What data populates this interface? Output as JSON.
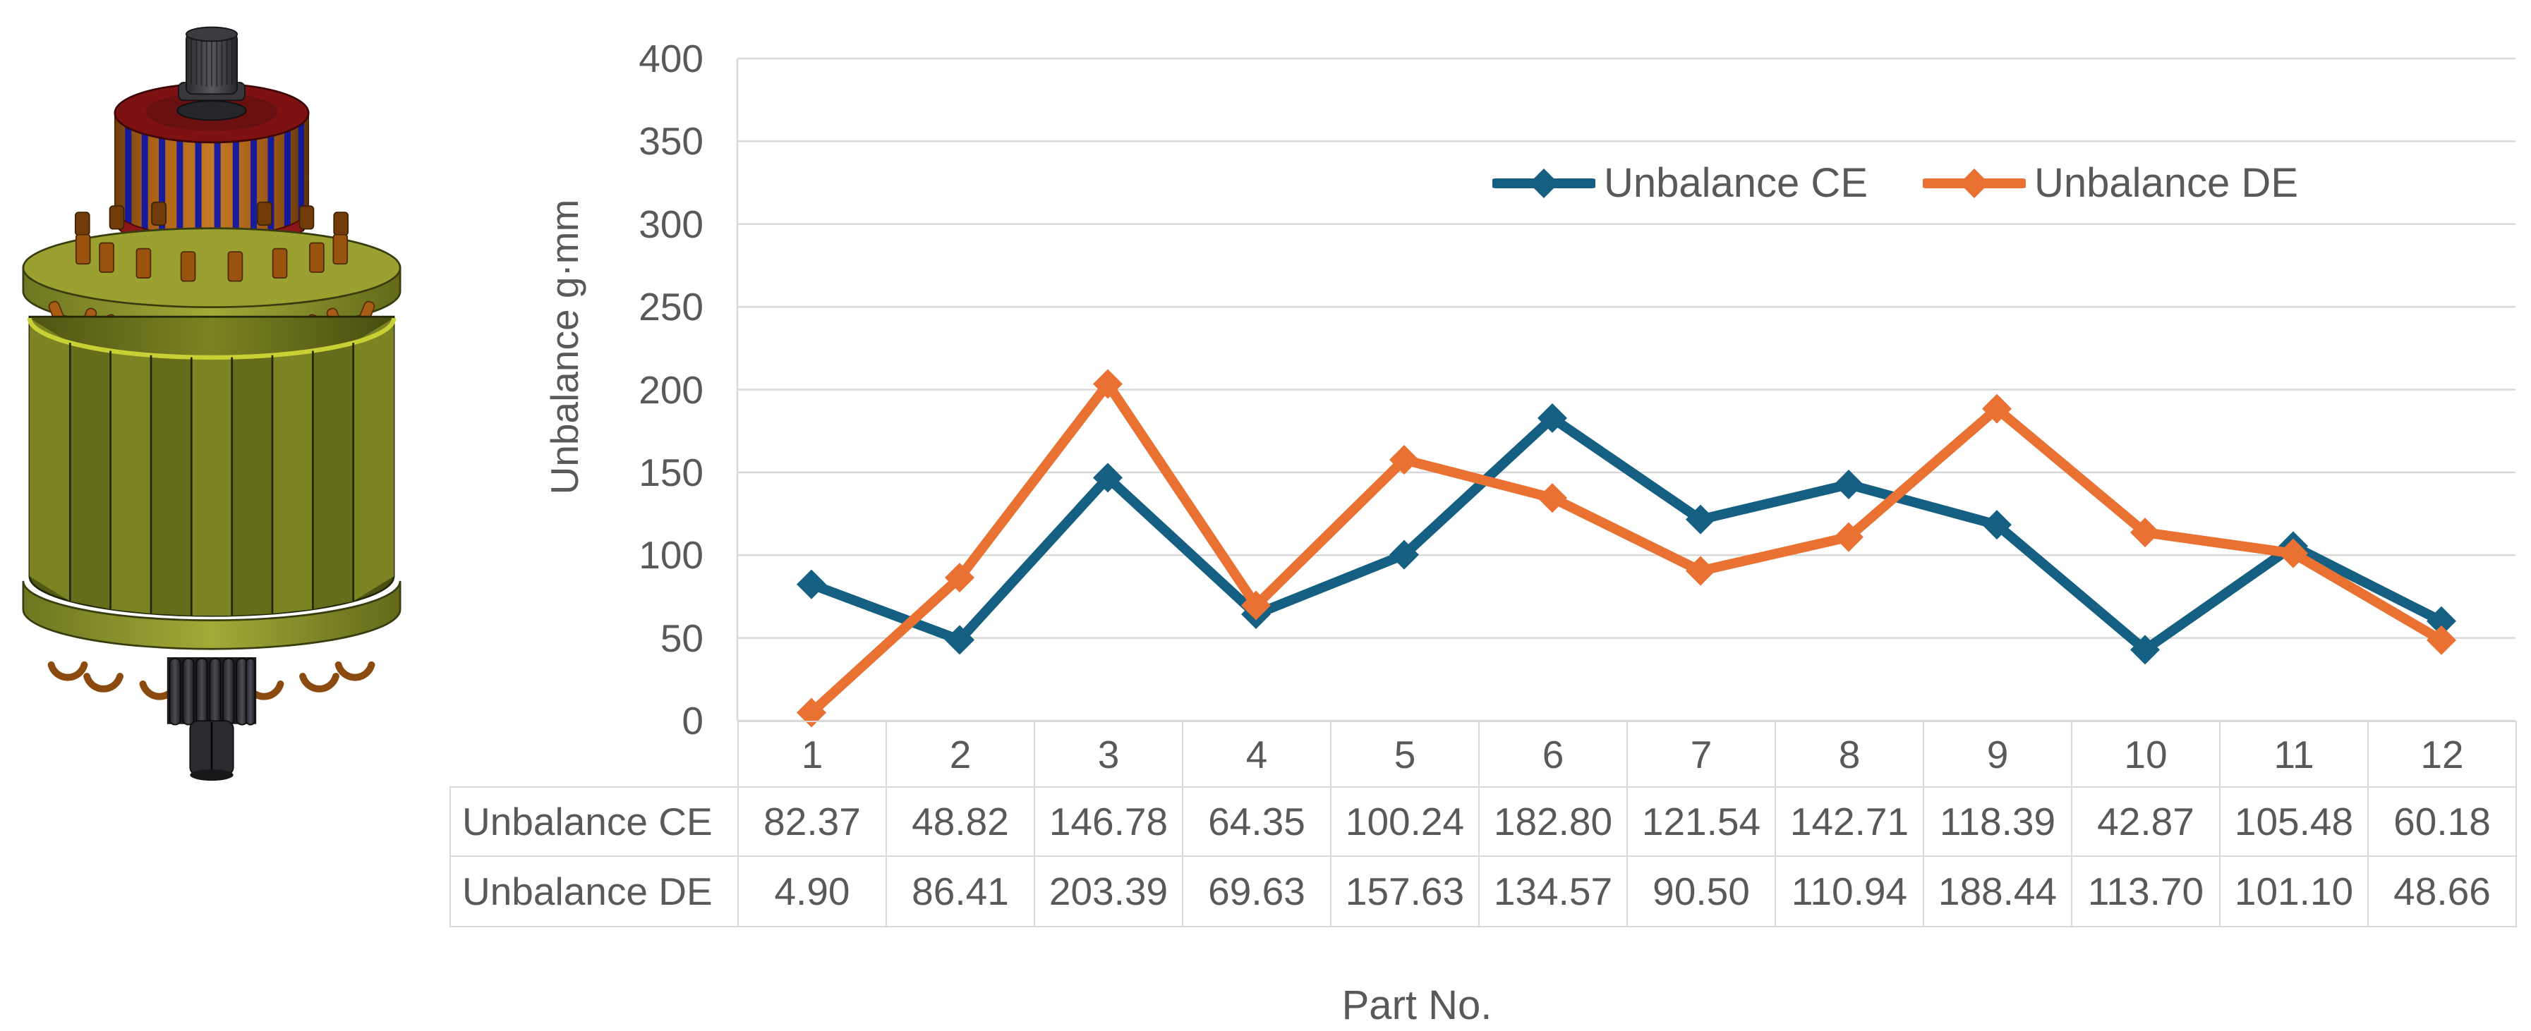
{
  "chart_data": {
    "type": "line",
    "title": "",
    "xlabel": "Part No.",
    "ylabel": "Unbalance g·mm",
    "ylim": [
      0,
      400
    ],
    "ytick_step": 50,
    "yticks": [
      "0",
      "50",
      "100",
      "150",
      "200",
      "250",
      "300",
      "350",
      "400"
    ],
    "categories": [
      "1",
      "2",
      "3",
      "4",
      "5",
      "6",
      "7",
      "8",
      "9",
      "10",
      "11",
      "12"
    ],
    "series": [
      {
        "name": "Unbalance CE",
        "color": "#156082",
        "values": [
          "82.37",
          "48.82",
          "146.78",
          "64.35",
          "100.24",
          "182.80",
          "121.54",
          "142.71",
          "118.39",
          "42.87",
          "105.48",
          "60.18"
        ]
      },
      {
        "name": "Unbalance DE",
        "color": "#E97132",
        "values": [
          "4.90",
          "86.41",
          "203.39",
          "69.63",
          "157.63",
          "134.57",
          "90.50",
          "110.94",
          "188.44",
          "113.70",
          "101.10",
          "48.66"
        ]
      }
    ],
    "legend_position": "top-inside",
    "grid": true,
    "gridline_color": "#D9D9D9",
    "axis_text_color": "#595959",
    "marker": "diamond",
    "has_data_table": true
  }
}
